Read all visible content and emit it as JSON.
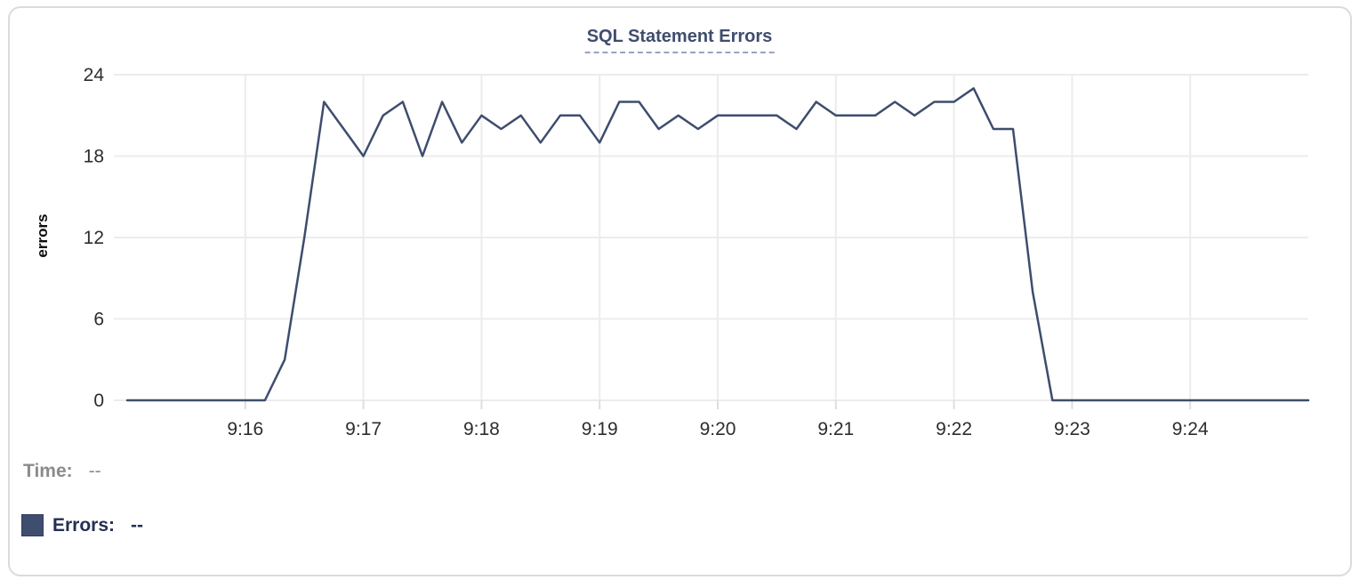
{
  "chart_data": {
    "type": "line",
    "title": "SQL Statement Errors",
    "xlabel": "",
    "ylabel": "errors",
    "ylim": [
      0,
      24
    ],
    "y_ticks": [
      0,
      6,
      12,
      18,
      24
    ],
    "x_start": "9:15:00",
    "x_end": "9:25:00",
    "interval_seconds": 10,
    "grid": true,
    "legend_position": "bottom-left",
    "x_ticks": [
      {
        "label": "9:16",
        "i": 6
      },
      {
        "label": "9:17",
        "i": 12
      },
      {
        "label": "9:18",
        "i": 18
      },
      {
        "label": "9:19",
        "i": 24
      },
      {
        "label": "9:20",
        "i": 30
      },
      {
        "label": "9:21",
        "i": 36
      },
      {
        "label": "9:22",
        "i": 42
      },
      {
        "label": "9:23",
        "i": 48
      },
      {
        "label": "9:24",
        "i": 54
      }
    ],
    "series": [
      {
        "name": "Errors",
        "color": "#3e4d6e",
        "values": [
          0,
          0,
          0,
          0,
          0,
          0,
          0,
          0,
          3,
          12,
          22,
          20,
          18,
          21,
          22,
          18,
          22,
          19,
          21,
          20,
          21,
          19,
          21,
          21,
          19,
          22,
          22,
          20,
          21,
          20,
          21,
          21,
          21,
          21,
          20,
          22,
          21,
          21,
          21,
          22,
          21,
          22,
          22,
          23,
          20,
          20,
          8,
          0,
          0,
          0,
          0,
          0,
          0,
          0,
          0,
          0,
          0,
          0,
          0,
          0,
          0
        ]
      }
    ]
  },
  "tooltip": {
    "time_label": "Time:",
    "time_value": "--",
    "errors_label": "Errors:",
    "errors_value": "--"
  },
  "colors": {
    "line": "#3e4d6e",
    "swatch": "#3f4e6e",
    "title": "#3f4d6e",
    "title-dash": "#97a3c2",
    "navy-text": "#252f55",
    "gray-text": "#8b8b8b",
    "axis-text": "#2d2d2d",
    "grid": "#ececec",
    "tick": "#dedede",
    "card-border": "#dbdbdb"
  }
}
